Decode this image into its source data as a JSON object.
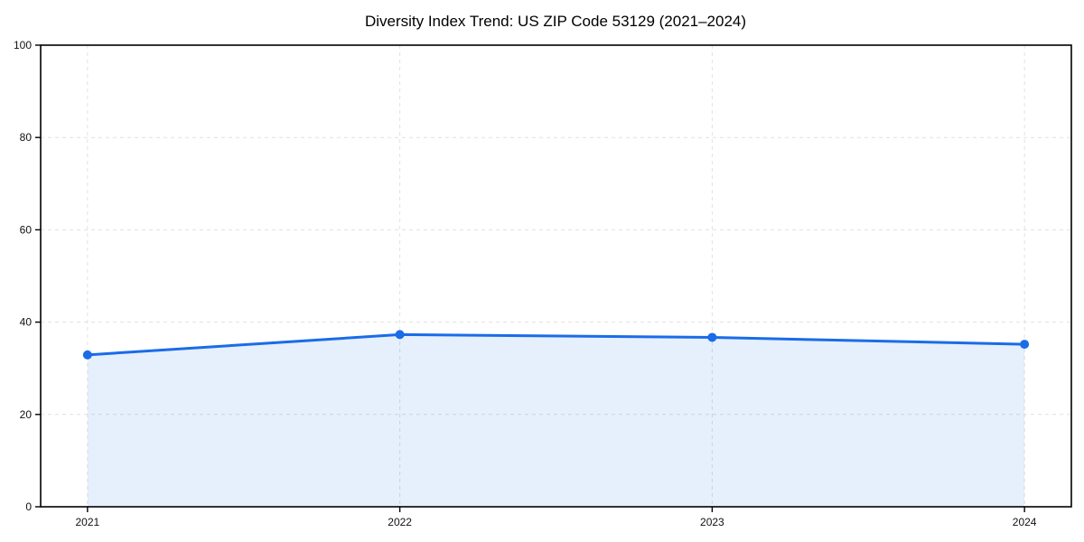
{
  "chart_data": {
    "type": "area",
    "title": "Diversity Index Trend: US ZIP Code 53129 (2021–2024)",
    "series_name": "Diversity Index",
    "categories": [
      "2021",
      "2022",
      "2023",
      "2024"
    ],
    "x": [
      2021,
      2022,
      2023,
      2024
    ],
    "values": [
      32.9,
      37.3,
      36.7,
      35.2
    ],
    "xlabel": "",
    "ylabel": "",
    "ylim": [
      0,
      100
    ],
    "yticks": [
      0,
      20,
      40,
      60,
      80,
      100
    ],
    "grid": true,
    "grid_style": "dashed",
    "legend_position": "none",
    "line_color": "#1a6ce8",
    "marker_color": "#1a6ce8",
    "fill_color": "#1a6ce8",
    "fill_opacity": 0.11,
    "grid_color": "#e0e0e0",
    "spine_color": "#000000",
    "background_color": "#ffffff"
  }
}
